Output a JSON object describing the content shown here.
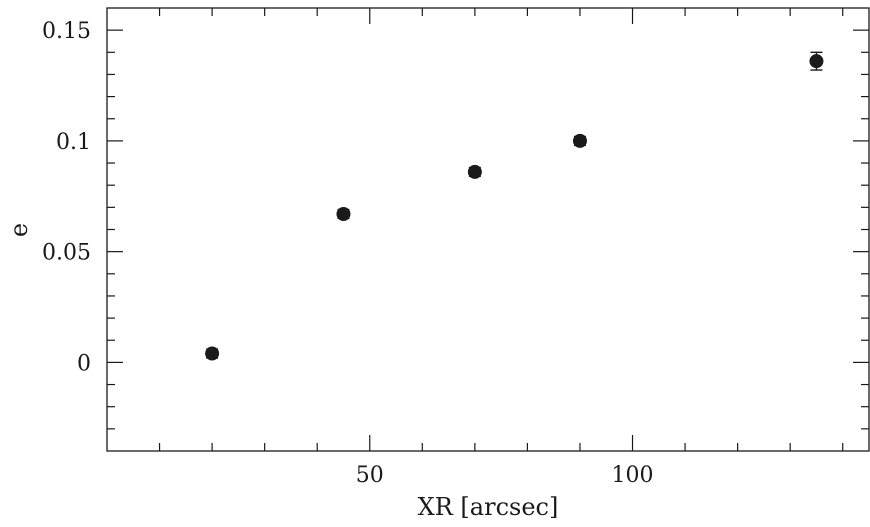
{
  "chart_data": {
    "type": "scatter",
    "xlabel": "XR [arcsec]",
    "ylabel": "e",
    "xlim": [
      0,
      145
    ],
    "ylim": [
      -0.04,
      0.16
    ],
    "x_ticks_major": [
      50,
      100
    ],
    "x_tick_labels": [
      "50",
      "100"
    ],
    "x_ticks_minor_step": 10,
    "y_ticks_major": [
      0,
      0.05,
      0.1,
      0.15
    ],
    "y_tick_labels": [
      "0",
      "0.05",
      "0.1",
      "0.15"
    ],
    "y_ticks_minor_step": 0.01,
    "grid": false,
    "points": [
      {
        "x": 20,
        "y": 0.004,
        "yerr": 0.002
      },
      {
        "x": 45,
        "y": 0.067,
        "yerr": 0.002
      },
      {
        "x": 70,
        "y": 0.086,
        "yerr": 0.002
      },
      {
        "x": 90,
        "y": 0.1,
        "yerr": 0.002
      },
      {
        "x": 135,
        "y": 0.136,
        "yerr": 0.004
      }
    ],
    "marker_color": "#1a1a1a"
  }
}
